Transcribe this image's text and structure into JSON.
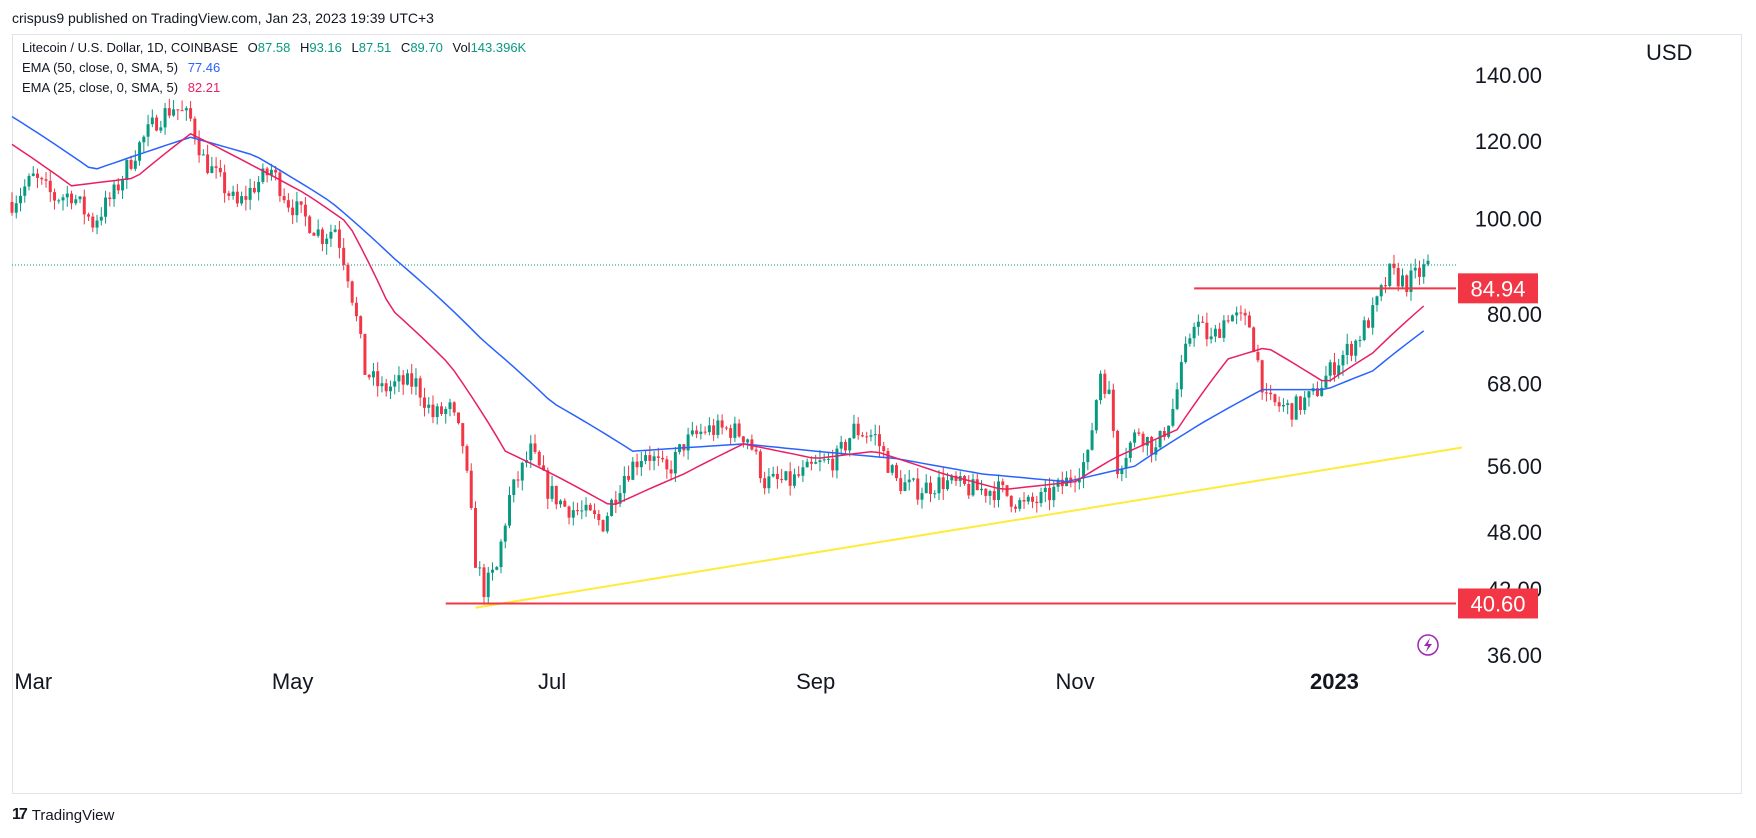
{
  "header": {
    "publisher": "crispus9 published on TradingView.com, Jan 23, 2023 19:39 UTC+3"
  },
  "legend": {
    "symbol": "Litecoin / U.S. Dollar, 1D, COINBASE",
    "ohlc": [
      {
        "k": "O",
        "v": "87.58"
      },
      {
        "k": "H",
        "v": "93.16"
      },
      {
        "k": "L",
        "v": "87.51"
      },
      {
        "k": "C",
        "v": "89.70"
      },
      {
        "k": "Vol",
        "v": "143.396K"
      }
    ],
    "ema50": {
      "label": "EMA (50, close, 0, SMA, 5)",
      "value": "77.46",
      "color": "#2962ff"
    },
    "ema25": {
      "label": "EMA (25, close, 0, SMA, 5)",
      "value": "82.21",
      "color": "#e91e63"
    }
  },
  "footer": {
    "brand": "TradingView",
    "logo_glyph": "17"
  },
  "chart_data": {
    "type": "candlestick",
    "currency": "USD",
    "y_scale": "log",
    "ylim": [
      36,
      140
    ],
    "x_range": [
      "2022-02-24",
      "2023-01-23"
    ],
    "y_ticks": [
      "140.00",
      "120.00",
      "100.00",
      "80.00",
      "68.00",
      "56.00",
      "48.00",
      "42.00",
      "36.00"
    ],
    "y_tick_values": [
      140,
      120,
      100,
      80,
      68,
      56,
      48,
      42,
      36
    ],
    "x_ticks": [
      {
        "label": "Mar",
        "date": "2022-03-01"
      },
      {
        "label": "May",
        "date": "2022-05-01"
      },
      {
        "label": "Jul",
        "date": "2022-07-01"
      },
      {
        "label": "Sep",
        "date": "2022-09-01"
      },
      {
        "label": "Nov",
        "date": "2022-11-01"
      },
      {
        "label": "2023",
        "date": "2023-01-01"
      }
    ],
    "last_price": 89.7,
    "horizontal_levels": [
      {
        "label": "84.94",
        "value": 84.94,
        "from": "2022-11-29",
        "color": "#f23645"
      },
      {
        "label": "40.60",
        "value": 40.6,
        "from": "2022-06-06",
        "color": "#f23645"
      }
    ],
    "trendline": {
      "color": "#ffeb3b",
      "from": {
        "date": "2022-06-13",
        "value": 40.2
      },
      "to": {
        "date": "2023-01-31",
        "value": 58.5
      }
    },
    "colors": {
      "up": "#089981",
      "down": "#f23645",
      "ema50": "#2962ff",
      "ema25": "#e91e63",
      "last_price_line": "#089981"
    },
    "close_path": [
      [
        "2022-02-24",
        104
      ],
      [
        "2022-03-01",
        110
      ],
      [
        "2022-03-06",
        105
      ],
      [
        "2022-03-10",
        106
      ],
      [
        "2022-03-15",
        99
      ],
      [
        "2022-03-20",
        106
      ],
      [
        "2022-03-25",
        117
      ],
      [
        "2022-03-30",
        126
      ],
      [
        "2022-04-03",
        130
      ],
      [
        "2022-04-07",
        126
      ],
      [
        "2022-04-10",
        115
      ],
      [
        "2022-04-14",
        109
      ],
      [
        "2022-04-18",
        103
      ],
      [
        "2022-04-22",
        108
      ],
      [
        "2022-04-26",
        112
      ],
      [
        "2022-04-30",
        104
      ],
      [
        "2022-05-04",
        100
      ],
      [
        "2022-05-08",
        96
      ],
      [
        "2022-05-11",
        98
      ],
      [
        "2022-05-14",
        88
      ],
      [
        "2022-05-18",
        70
      ],
      [
        "2022-05-22",
        67
      ],
      [
        "2022-05-26",
        68
      ],
      [
        "2022-05-30",
        68
      ],
      [
        "2022-06-03",
        63
      ],
      [
        "2022-06-07",
        64
      ],
      [
        "2022-06-10",
        59
      ],
      [
        "2022-06-13",
        45
      ],
      [
        "2022-06-15",
        42
      ],
      [
        "2022-06-18",
        44
      ],
      [
        "2022-06-21",
        52
      ],
      [
        "2022-06-26",
        58
      ],
      [
        "2022-06-30",
        53
      ],
      [
        "2022-07-04",
        51
      ],
      [
        "2022-07-09",
        50
      ],
      [
        "2022-07-13",
        49
      ],
      [
        "2022-07-18",
        55
      ],
      [
        "2022-07-23",
        58
      ],
      [
        "2022-07-28",
        55
      ],
      [
        "2022-08-01",
        59
      ],
      [
        "2022-08-06",
        61
      ],
      [
        "2022-08-12",
        61
      ],
      [
        "2022-08-16",
        60
      ],
      [
        "2022-08-20",
        54
      ],
      [
        "2022-08-26",
        54
      ],
      [
        "2022-09-01",
        56
      ],
      [
        "2022-09-06",
        57
      ],
      [
        "2022-09-10",
        61
      ],
      [
        "2022-09-15",
        60
      ],
      [
        "2022-09-20",
        54
      ],
      [
        "2022-09-25",
        53
      ],
      [
        "2022-10-01",
        54
      ],
      [
        "2022-10-08",
        53
      ],
      [
        "2022-10-14",
        53
      ],
      [
        "2022-10-20",
        51
      ],
      [
        "2022-10-25",
        52
      ],
      [
        "2022-10-30",
        54
      ],
      [
        "2022-11-04",
        57
      ],
      [
        "2022-11-07",
        70
      ],
      [
        "2022-11-09",
        66
      ],
      [
        "2022-11-11",
        56
      ],
      [
        "2022-11-16",
        61
      ],
      [
        "2022-11-20",
        58
      ],
      [
        "2022-11-24",
        64
      ],
      [
        "2022-11-29",
        79
      ],
      [
        "2022-12-03",
        75
      ],
      [
        "2022-12-07",
        80
      ],
      [
        "2022-12-12",
        78
      ],
      [
        "2022-12-16",
        65
      ],
      [
        "2022-12-22",
        64
      ],
      [
        "2022-12-27",
        66
      ],
      [
        "2023-01-01",
        71
      ],
      [
        "2023-01-06",
        75
      ],
      [
        "2023-01-10",
        80
      ],
      [
        "2023-01-14",
        88
      ],
      [
        "2023-01-18",
        86
      ],
      [
        "2023-01-21",
        88
      ],
      [
        "2023-01-23",
        89.7
      ]
    ],
    "ema25_path": [
      [
        "2022-02-24",
        119
      ],
      [
        "2022-03-10",
        108
      ],
      [
        "2022-03-25",
        110
      ],
      [
        "2022-04-07",
        122
      ],
      [
        "2022-04-22",
        113
      ],
      [
        "2022-05-04",
        106
      ],
      [
        "2022-05-14",
        99
      ],
      [
        "2022-05-24",
        81
      ],
      [
        "2022-06-07",
        71
      ],
      [
        "2022-06-20",
        58
      ],
      [
        "2022-07-01",
        55
      ],
      [
        "2022-07-15",
        51
      ],
      [
        "2022-08-01",
        55
      ],
      [
        "2022-08-15",
        59
      ],
      [
        "2022-09-01",
        57
      ],
      [
        "2022-09-15",
        58
      ],
      [
        "2022-10-01",
        55
      ],
      [
        "2022-10-15",
        53
      ],
      [
        "2022-11-01",
        54
      ],
      [
        "2022-11-10",
        57
      ],
      [
        "2022-11-25",
        61
      ],
      [
        "2022-12-07",
        72
      ],
      [
        "2022-12-16",
        74
      ],
      [
        "2022-12-30",
        68
      ],
      [
        "2023-01-10",
        73
      ],
      [
        "2023-01-23",
        82.21
      ]
    ],
    "ema50_path": [
      [
        "2022-02-24",
        127
      ],
      [
        "2022-03-15",
        112
      ],
      [
        "2022-04-07",
        121
      ],
      [
        "2022-04-22",
        116
      ],
      [
        "2022-05-10",
        104
      ],
      [
        "2022-05-25",
        91
      ],
      [
        "2022-06-15",
        75
      ],
      [
        "2022-07-01",
        65
      ],
      [
        "2022-07-20",
        58
      ],
      [
        "2022-08-15",
        59
      ],
      [
        "2022-09-01",
        58
      ],
      [
        "2022-09-20",
        57
      ],
      [
        "2022-10-10",
        55
      ],
      [
        "2022-10-30",
        54
      ],
      [
        "2022-11-15",
        56
      ],
      [
        "2022-12-01",
        62
      ],
      [
        "2022-12-15",
        67
      ],
      [
        "2022-12-30",
        67
      ],
      [
        "2023-01-10",
        70
      ],
      [
        "2023-01-23",
        77.46
      ]
    ]
  }
}
